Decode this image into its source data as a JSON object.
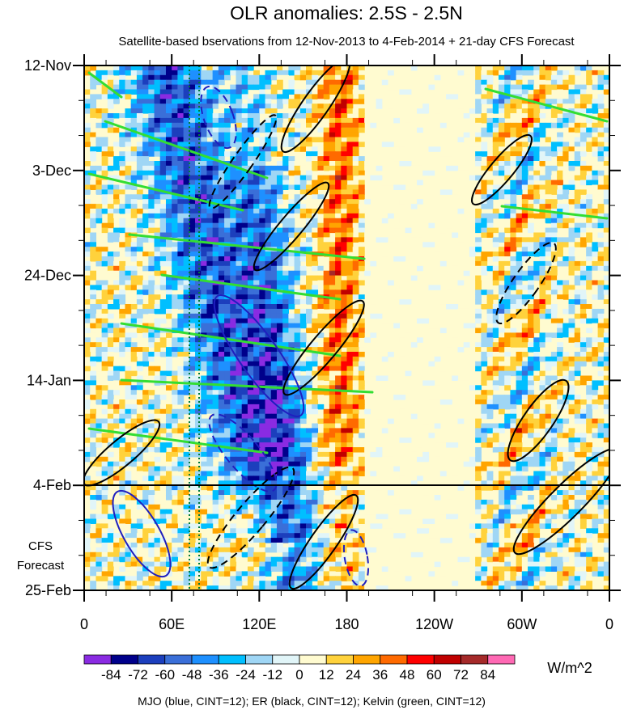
{
  "chart_data": {
    "type": "heatmap",
    "title": "OLR anomalies: 2.5S - 2.5N",
    "subtitle": "Satellite-based bservations from 12-Nov-2013 to 4-Feb-2014 + 21-day CFS Forecast",
    "x_ticks": [
      "0",
      "60E",
      "120E",
      "180",
      "120W",
      "60W",
      "0"
    ],
    "x_range_deg_east": [
      0,
      360
    ],
    "y_ticks": [
      "12-Nov",
      "3-Dec",
      "24-Dec",
      "14-Jan",
      "4-Feb",
      "25-Feb"
    ],
    "y_range_days_from_start": [
      0,
      105
    ],
    "observation_end_label": "4-Feb",
    "forecast_label": [
      "CFS",
      "Forecast"
    ],
    "colorbar": {
      "labels": [
        "-84",
        "-72",
        "-60",
        "-48",
        "-36",
        "-24",
        "-12",
        "0",
        "12",
        "24",
        "36",
        "48",
        "60",
        "72",
        "84"
      ],
      "colors": [
        "#8a2be2",
        "#00008b",
        "#1c3fbd",
        "#3a6fd8",
        "#1e90ff",
        "#00bfff",
        "#9fd6f5",
        "#e1f5f8",
        "#fffbd0",
        "#ffd23c",
        "#ffa500",
        "#ff6a00",
        "#ff0000",
        "#c00000",
        "#a52a2a",
        "#ff69b4"
      ],
      "units": "W/m^2"
    },
    "caption": "MJO (blue, CINT=12); ER (black, CINT=12); Kelvin (green, CINT=12)",
    "overlay_colors": {
      "mjo": "#1f1fbf",
      "er": "#000000",
      "kelvin": "#33dd33",
      "reference_lines": "#007a3d"
    }
  }
}
